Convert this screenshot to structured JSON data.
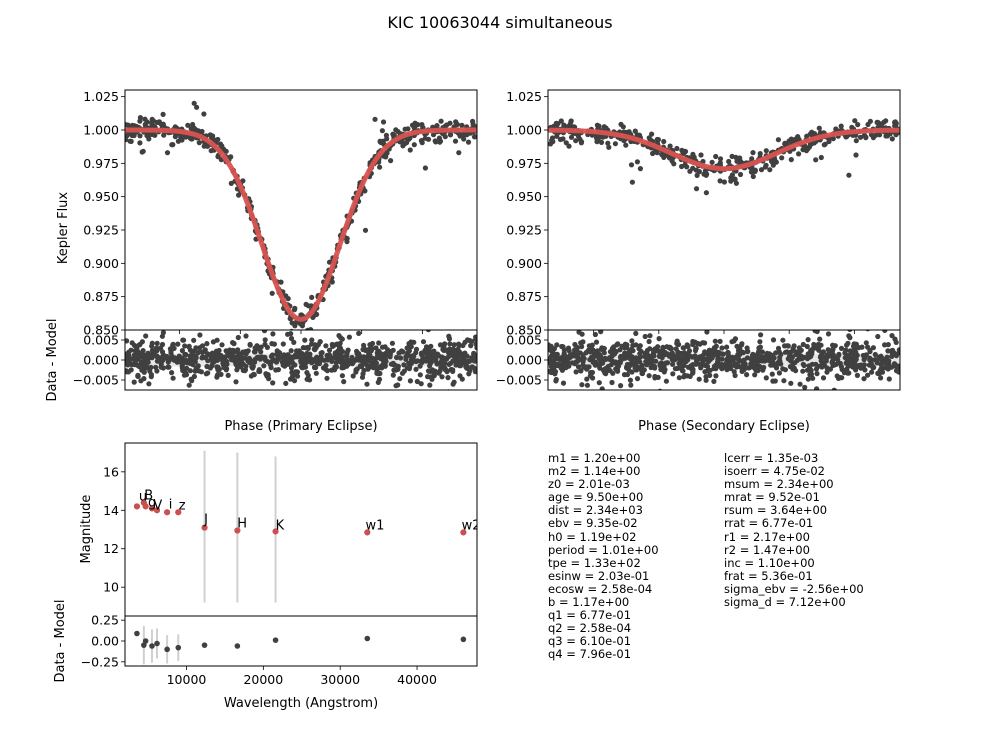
{
  "title": "KIC 10063044 simultaneous",
  "colors": {
    "data": "#404040",
    "model": "#d9534f",
    "error": "#d0d0d0",
    "sed_data": "#e05050"
  },
  "panels": {
    "primary": {
      "ylabel": "Kepler Flux",
      "ylabel_resid": "Data - Model",
      "xlabel": "Phase (Primary Eclipse)"
    },
    "secondary": {
      "xlabel": "Phase (Secondary Eclipse)"
    },
    "sed": {
      "ylabel": "Magnitude",
      "ylabel_resid": "Data - Model",
      "xlabel": "Wavelength (Angstrom)"
    }
  },
  "chart_data": [
    {
      "type": "scatter",
      "id": "primary_eclipse",
      "xlim": [
        -0.145,
        0.145
      ],
      "ylim": [
        0.85,
        1.03
      ],
      "xticks": [
        -0.1,
        -0.05,
        0.0,
        0.05,
        0.1
      ],
      "xtick_labels": [
        "−0.10",
        "−0.05",
        "0.00",
        "0.05",
        "0.10"
      ],
      "yticks": [
        0.85,
        0.875,
        0.9,
        0.925,
        0.95,
        0.975,
        1.0,
        1.025
      ],
      "ytick_labels": [
        "0.850",
        "0.875",
        "0.900",
        "0.925",
        "0.950",
        "0.975",
        "1.000",
        "1.025"
      ],
      "model": {
        "depth": 0.142,
        "sigma": 0.032,
        "center": 0.0,
        "baseline": 1.0
      },
      "scatter_sigma": 0.004,
      "n_points": 520,
      "outliers": [
        [
          -0.088,
          1.02
        ],
        [
          -0.086,
          1.017
        ],
        [
          -0.08,
          1.012
        ],
        [
          0.061,
          1.008
        ],
        [
          0.068,
          1.006
        ],
        [
          -0.13,
          0.984
        ],
        [
          -0.11,
          0.983
        ],
        [
          0.09,
          0.985
        ],
        [
          0.13,
          0.983
        ]
      ]
    },
    {
      "type": "scatter",
      "id": "primary_residuals",
      "xlim": [
        -0.145,
        0.145
      ],
      "ylim": [
        -0.0075,
        0.0075
      ],
      "yticks": [
        -0.005,
        0.0,
        0.005
      ],
      "ytick_labels": [
        "−0.005",
        "0.000",
        "0.005"
      ],
      "scatter_sigma": 0.003
    },
    {
      "type": "scatter",
      "id": "secondary_eclipse",
      "xlim": [
        0.365,
        0.635
      ],
      "ylim": [
        0.85,
        1.03
      ],
      "xticks": [
        0.4,
        0.45,
        0.5,
        0.55,
        0.6
      ],
      "xtick_labels": [
        "0.40",
        "0.45",
        "0.50",
        "0.55",
        "0.60"
      ],
      "yticks": [
        0.85,
        0.875,
        0.9,
        0.925,
        0.95,
        0.975,
        1.0,
        1.025
      ],
      "ytick_labels": [
        "0.850",
        "0.875",
        "0.900",
        "0.925",
        "0.950",
        "0.975",
        "1.000",
        "1.025"
      ],
      "model": {
        "depth": 0.029,
        "sigma": 0.04,
        "center": 0.5,
        "baseline": 1.0
      },
      "scatter_sigma": 0.004,
      "n_points": 480
    },
    {
      "type": "scatter",
      "id": "secondary_residuals",
      "xlim": [
        0.365,
        0.635
      ],
      "ylim": [
        -0.0075,
        0.0075
      ],
      "yticks": [
        -0.005,
        0.0,
        0.005
      ],
      "ytick_labels": [
        "−0.005",
        "0.000",
        "0.005"
      ],
      "scatter_sigma": 0.0028
    },
    {
      "type": "scatter",
      "id": "sed",
      "xlim": [
        2000,
        47800
      ],
      "ylim": [
        8.5,
        17.5
      ],
      "yticks": [
        10,
        12,
        14,
        16
      ],
      "ytick_labels": [
        "10",
        "12",
        "14",
        "16"
      ],
      "bands": [
        {
          "name": "u",
          "wl": 3551,
          "mag": 14.2
        },
        {
          "name": "B",
          "wl": 4450,
          "mag": 14.4
        },
        {
          "name": "g",
          "wl": 4686,
          "mag": 14.2
        },
        {
          "name": "V",
          "wl": 5510,
          "mag": 14.1
        },
        {
          "name": "r",
          "wl": 6166,
          "mag": 14.0
        },
        {
          "name": "i",
          "wl": 7480,
          "mag": 13.9
        },
        {
          "name": "z",
          "wl": 8932,
          "mag": 13.9
        },
        {
          "name": "J",
          "wl": 12350,
          "mag": 13.1,
          "err_lo": 9.2,
          "err_hi": 17.1
        },
        {
          "name": "H",
          "wl": 16620,
          "mag": 12.95,
          "err_lo": 9.2,
          "err_hi": 17.0
        },
        {
          "name": "K",
          "wl": 21590,
          "mag": 12.9,
          "err_lo": 9.2,
          "err_hi": 16.8
        },
        {
          "name": "w1",
          "wl": 33526,
          "mag": 12.85
        },
        {
          "name": "w2",
          "wl": 46028,
          "mag": 12.85
        }
      ],
      "band_labels": [
        {
          "text": "u",
          "wl": 3800,
          "mag": 14.5
        },
        {
          "text": "B",
          "wl": 4500,
          "mag": 14.55
        },
        {
          "text": "g",
          "wl": 5000,
          "mag": 14.2
        },
        {
          "text": "V",
          "wl": 5700,
          "mag": 14.05
        },
        {
          "text": "i",
          "wl": 7700,
          "mag": 14.1
        },
        {
          "text": "z",
          "wl": 9000,
          "mag": 14.05
        },
        {
          "text": "J",
          "wl": 12300,
          "mag": 13.3
        },
        {
          "text": "H",
          "wl": 16600,
          "mag": 13.1
        },
        {
          "text": "K",
          "wl": 21600,
          "mag": 13.0
        },
        {
          "text": "w1",
          "wl": 33300,
          "mag": 13.0
        },
        {
          "text": "w2",
          "wl": 45800,
          "mag": 13.0
        }
      ]
    },
    {
      "type": "scatter",
      "id": "sed_residuals",
      "xlim": [
        2000,
        47800
      ],
      "ylim": [
        -0.3,
        0.3
      ],
      "xticks": [
        10000,
        20000,
        30000,
        40000
      ],
      "xtick_labels": [
        "10000",
        "20000",
        "30000",
        "40000"
      ],
      "yticks": [
        -0.25,
        0.0,
        0.25
      ],
      "ytick_labels": [
        "−0.25",
        "0.00",
        "0.25"
      ],
      "points": [
        {
          "wl": 3551,
          "res": 0.09
        },
        {
          "wl": 4450,
          "res": -0.05,
          "err": 0.23
        },
        {
          "wl": 4686,
          "res": 0.0
        },
        {
          "wl": 5510,
          "res": -0.06,
          "err": 0.2
        },
        {
          "wl": 6166,
          "res": -0.03,
          "err": 0.18
        },
        {
          "wl": 7480,
          "res": -0.1,
          "err": 0.17
        },
        {
          "wl": 8932,
          "res": -0.08,
          "err": 0.16
        },
        {
          "wl": 12350,
          "res": -0.05
        },
        {
          "wl": 16620,
          "res": -0.06
        },
        {
          "wl": 21590,
          "res": 0.01
        },
        {
          "wl": 33526,
          "res": 0.03
        },
        {
          "wl": 46028,
          "res": 0.02
        }
      ]
    }
  ],
  "parameters_left": [
    "m1 = 1.20e+00",
    "m2 = 1.14e+00",
    "z0 = 2.01e-03",
    "age = 9.50e+00",
    "dist = 2.34e+03",
    "ebv = 9.35e-02",
    "h0 = 1.19e+02",
    "period = 1.01e+00",
    "tpe = 1.33e+02",
    "esinw = 2.03e-01",
    "ecosw = 2.58e-04",
    "b = 1.17e+00",
    "q1 = 6.77e-01",
    "q2 = 2.58e-04",
    "q3 = 6.10e-01",
    "q4 = 7.96e-01"
  ],
  "parameters_right": [
    "lcerr = 1.35e-03",
    "isoerr = 4.75e-02",
    "msum = 2.34e+00",
    "mrat = 9.52e-01",
    "rsum = 3.64e+00",
    "rrat = 6.77e-01",
    "r1 = 2.17e+00",
    "r2 = 1.47e+00",
    "inc = 1.10e+00",
    "frat = 5.36e-01",
    "sigma_ebv = -2.56e+00",
    "sigma_d = 7.12e+00"
  ]
}
